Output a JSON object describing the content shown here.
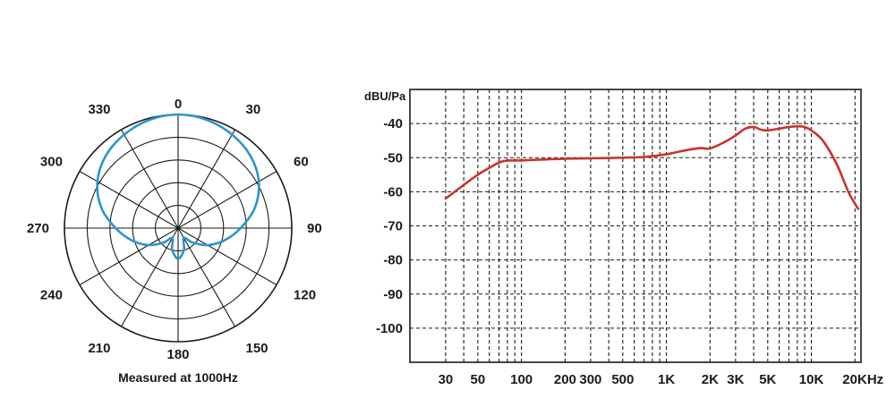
{
  "chart_data": [
    {
      "type": "polar",
      "angle_labels": [
        "0",
        "30",
        "60",
        "90",
        "120",
        "150",
        "180",
        "210",
        "240",
        "270",
        "300",
        "330"
      ],
      "caption": "Measured at 1000Hz",
      "rings": 5,
      "series": [
        {
          "color": "#2b95cf",
          "points": [
            {
              "angle": 0,
              "r": 1.0
            },
            {
              "angle": 15,
              "r": 0.985
            },
            {
              "angle": 30,
              "r": 0.95
            },
            {
              "angle": 45,
              "r": 0.9
            },
            {
              "angle": 60,
              "r": 0.82
            },
            {
              "angle": 75,
              "r": 0.7
            },
            {
              "angle": 90,
              "r": 0.55
            },
            {
              "angle": 105,
              "r": 0.42
            },
            {
              "angle": 120,
              "r": 0.3
            },
            {
              "angle": 135,
              "r": 0.18
            },
            {
              "angle": 150,
              "r": 0.1
            },
            {
              "angle": 165,
              "r": 0.2
            },
            {
              "angle": 180,
              "r": 0.27
            },
            {
              "angle": 195,
              "r": 0.2
            },
            {
              "angle": 210,
              "r": 0.1
            },
            {
              "angle": 225,
              "r": 0.18
            },
            {
              "angle": 240,
              "r": 0.3
            },
            {
              "angle": 255,
              "r": 0.42
            },
            {
              "angle": 270,
              "r": 0.55
            },
            {
              "angle": 285,
              "r": 0.7
            },
            {
              "angle": 300,
              "r": 0.82
            },
            {
              "angle": 315,
              "r": 0.9
            },
            {
              "angle": 330,
              "r": 0.95
            },
            {
              "angle": 345,
              "r": 0.985
            }
          ]
        }
      ]
    },
    {
      "type": "line",
      "ylabel": "dBU/Pa",
      "y_ticks": [
        {
          "label": "-40",
          "value": -40
        },
        {
          "label": "-50",
          "value": -50
        },
        {
          "label": "-60",
          "value": -60
        },
        {
          "label": "-70",
          "value": -70
        },
        {
          "label": "-80",
          "value": -80
        },
        {
          "label": "-90",
          "value": -90
        },
        {
          "label": "-100",
          "value": -100
        }
      ],
      "x_ticks": [
        {
          "label": "30",
          "value": 30
        },
        {
          "label": "50",
          "value": 50
        },
        {
          "label": "100",
          "value": 100
        },
        {
          "label": "200",
          "value": 200
        },
        {
          "label": "300",
          "value": 300
        },
        {
          "label": "500",
          "value": 500
        },
        {
          "label": "1K",
          "value": 1000
        },
        {
          "label": "2K",
          "value": 2000
        },
        {
          "label": "3K",
          "value": 3000
        },
        {
          "label": "5K",
          "value": 5000
        },
        {
          "label": "10K",
          "value": 10000
        },
        {
          "label": "20KHz",
          "value": 20000
        }
      ],
      "x_gridlines": [
        30,
        40,
        50,
        60,
        70,
        80,
        90,
        100,
        200,
        300,
        400,
        500,
        600,
        700,
        800,
        900,
        1000,
        2000,
        3000,
        4000,
        5000,
        6000,
        7000,
        8000,
        9000,
        10000,
        20000
      ],
      "xscale": "log",
      "xlim": [
        17,
        22000
      ],
      "ylim": [
        -110,
        -30
      ],
      "grid": true,
      "series": [
        {
          "color": "#c8342c",
          "points": [
            [
              30,
              -62
            ],
            [
              40,
              -58
            ],
            [
              50,
              -55
            ],
            [
              60,
              -53
            ],
            [
              75,
              -51
            ],
            [
              100,
              -50.8
            ],
            [
              150,
              -50.5
            ],
            [
              200,
              -50.3
            ],
            [
              300,
              -50.2
            ],
            [
              500,
              -50
            ],
            [
              700,
              -49.8
            ],
            [
              1000,
              -49
            ],
            [
              1300,
              -48
            ],
            [
              1700,
              -47.2
            ],
            [
              2000,
              -47.3
            ],
            [
              2500,
              -45.5
            ],
            [
              3000,
              -43.5
            ],
            [
              3500,
              -41.5
            ],
            [
              4000,
              -41
            ],
            [
              4500,
              -41.8
            ],
            [
              5000,
              -42
            ],
            [
              6000,
              -41.5
            ],
            [
              7000,
              -41
            ],
            [
              8000,
              -40.8
            ],
            [
              9000,
              -41
            ],
            [
              10000,
              -42
            ],
            [
              12000,
              -45
            ],
            [
              15000,
              -52
            ],
            [
              18000,
              -60
            ],
            [
              21000,
              -65
            ]
          ]
        }
      ]
    }
  ]
}
